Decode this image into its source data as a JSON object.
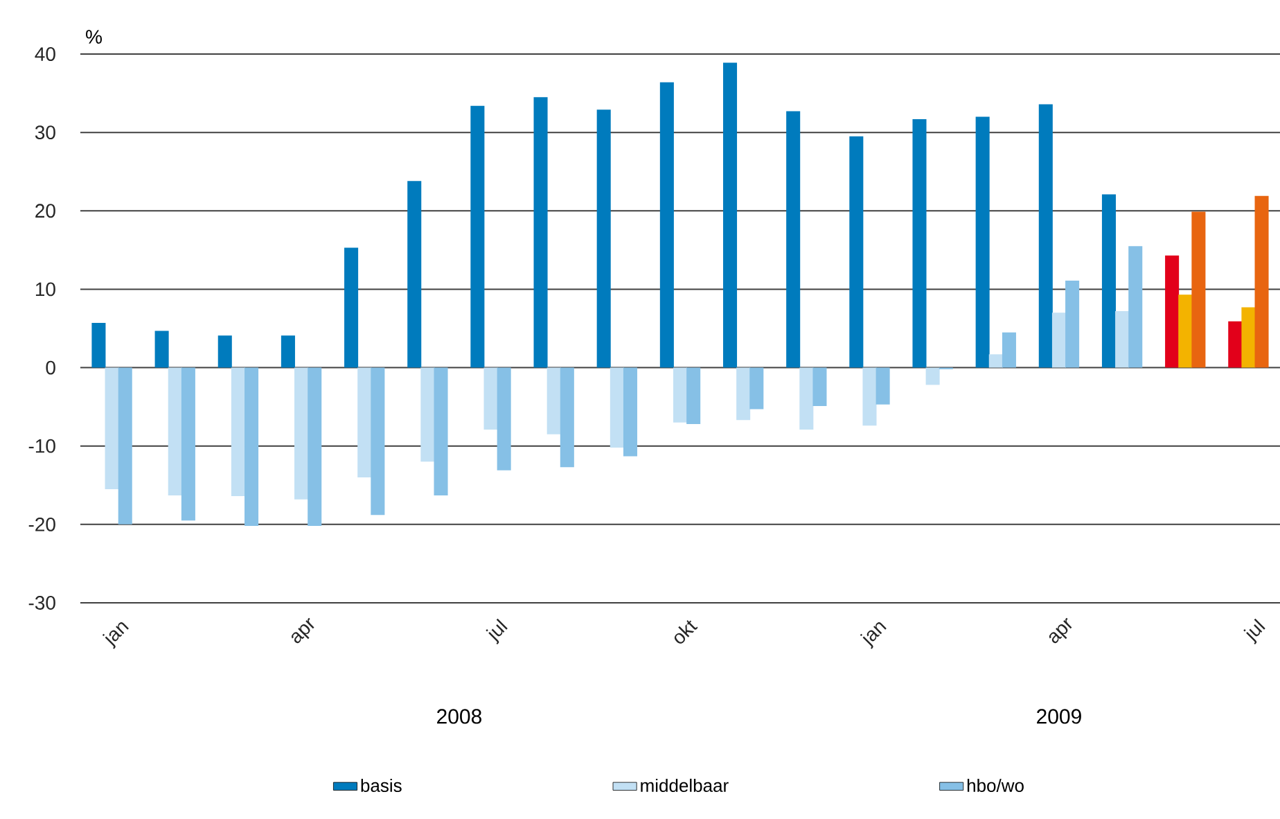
{
  "chart_data": {
    "type": "bar",
    "ylabel": "%",
    "categories": [
      "jan",
      null,
      null,
      "apr",
      null,
      null,
      "jul",
      null,
      null,
      "okt",
      null,
      null,
      "jan",
      null,
      null,
      "apr",
      null,
      null,
      "jul"
    ],
    "series": [
      {
        "name": "basis",
        "color": "#007bbd",
        "colors": [
          "#007bbd",
          "#007bbd",
          "#007bbd",
          "#007bbd",
          "#007bbd",
          "#007bbd",
          "#007bbd",
          "#007bbd",
          "#007bbd",
          "#007bbd",
          "#007bbd",
          "#007bbd",
          "#007bbd",
          "#007bbd",
          "#007bbd",
          "#007bbd",
          "#007bbd",
          "#e2001a",
          "#e2001a"
        ],
        "values": [
          5.7,
          4.7,
          4.1,
          4.1,
          15.3,
          23.8,
          33.4,
          34.5,
          32.9,
          36.4,
          38.9,
          32.7,
          29.5,
          31.7,
          32.0,
          33.6,
          22.1,
          14.3,
          5.9
        ]
      },
      {
        "name": "middelbaar",
        "color": "#c2e0f4",
        "colors": [
          "#c2e0f4",
          "#c2e0f4",
          "#c2e0f4",
          "#c2e0f4",
          "#c2e0f4",
          "#c2e0f4",
          "#c2e0f4",
          "#c2e0f4",
          "#c2e0f4",
          "#c2e0f4",
          "#c2e0f4",
          "#c2e0f4",
          "#c2e0f4",
          "#c2e0f4",
          "#c2e0f4",
          "#c2e0f4",
          "#c2e0f4",
          "#f3b300",
          "#f3b300"
        ],
        "values": [
          -15.5,
          -16.3,
          -16.4,
          -16.8,
          -14.0,
          -12.0,
          -7.9,
          -8.5,
          -10.2,
          -7.0,
          -6.7,
          -7.9,
          -7.4,
          -2.2,
          1.7,
          7.0,
          7.2,
          9.3,
          7.7
        ]
      },
      {
        "name": "hbo/wo",
        "color": "#86c0e6",
        "colors": [
          "#86c0e6",
          "#86c0e6",
          "#86c0e6",
          "#86c0e6",
          "#86c0e6",
          "#86c0e6",
          "#86c0e6",
          "#86c0e6",
          "#86c0e6",
          "#86c0e6",
          "#86c0e6",
          "#86c0e6",
          "#86c0e6",
          "#86c0e6",
          "#86c0e6",
          "#86c0e6",
          "#86c0e6",
          "#e86510",
          "#e86510"
        ],
        "values": [
          -20.0,
          -19.5,
          -20.2,
          -20.2,
          -18.8,
          -16.3,
          -13.1,
          -12.7,
          -11.3,
          -7.2,
          -5.3,
          -4.9,
          -4.7,
          -0.2,
          4.5,
          11.1,
          15.5,
          19.9,
          21.9
        ]
      }
    ],
    "ylim": [
      -30,
      40
    ],
    "yticks": [
      -30,
      -20,
      -10,
      0,
      10,
      20,
      30,
      40
    ],
    "grid": "y",
    "legend": "bottom",
    "annotations": [
      "2008",
      "2009"
    ]
  }
}
